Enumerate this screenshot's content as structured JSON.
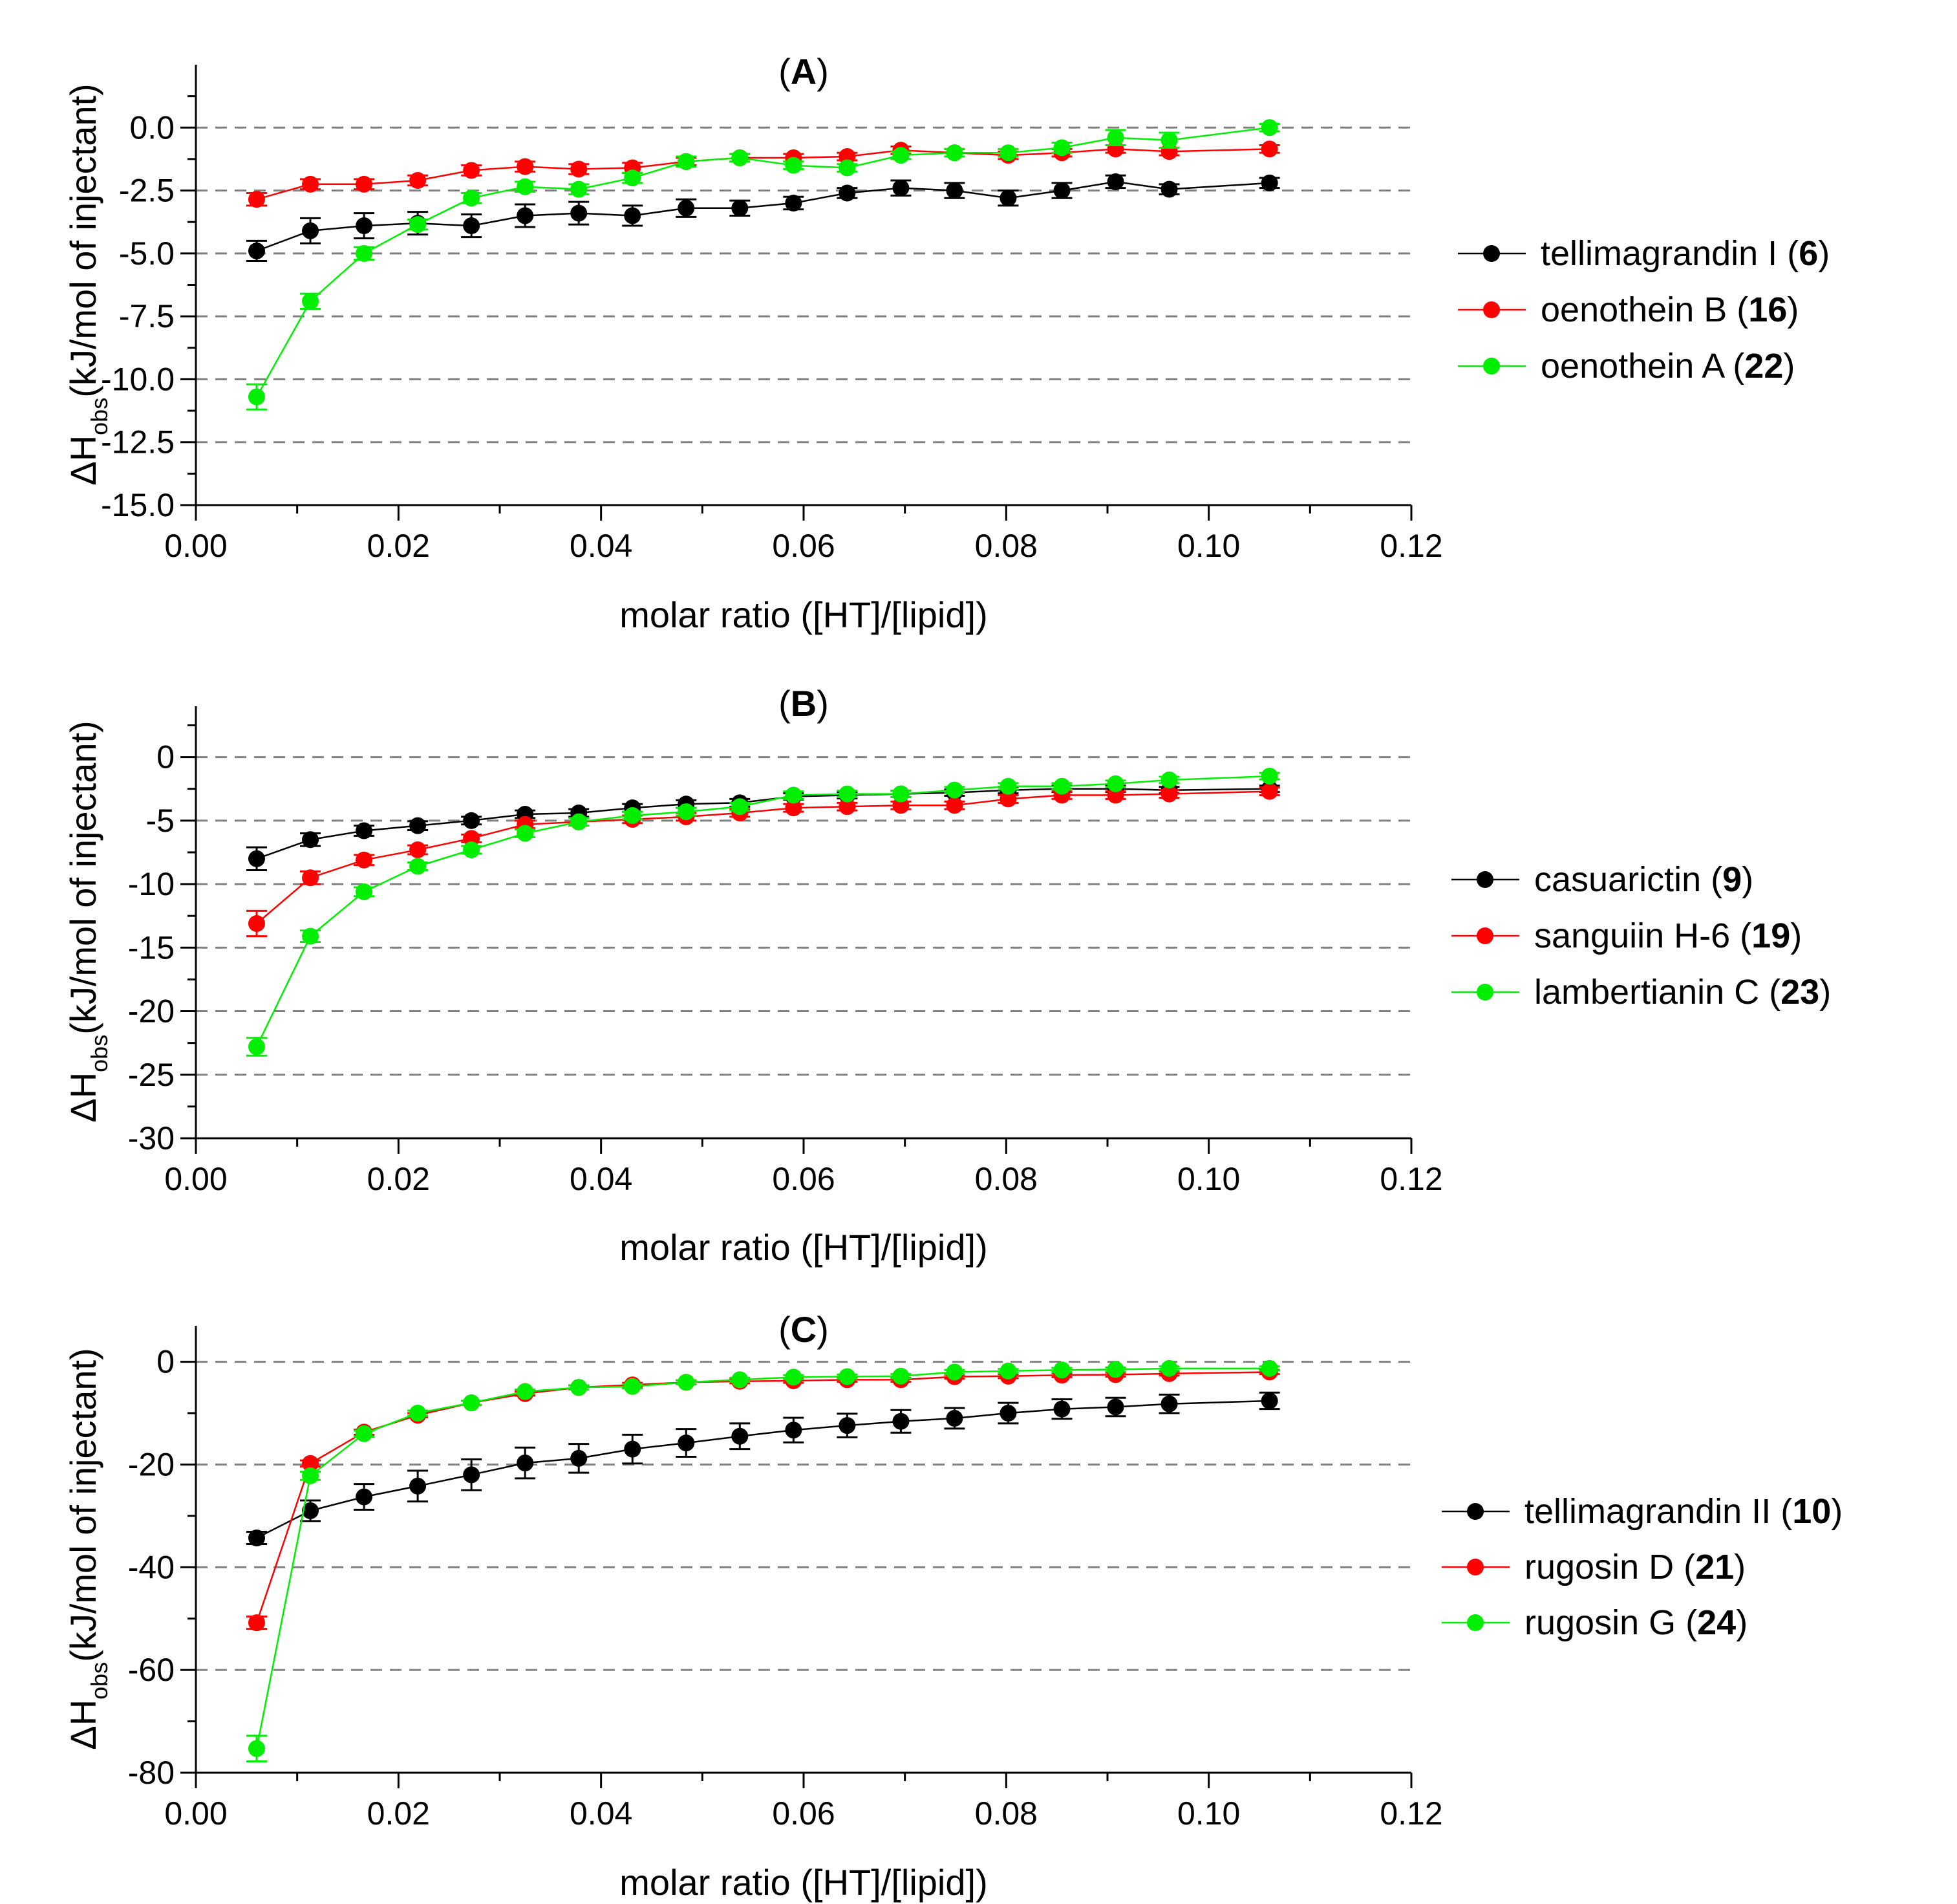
{
  "chart_data": [
    {
      "type": "line",
      "panel": "A",
      "title": "A",
      "xlabel": "molar ratio ([HT]/[lipid])",
      "ylabel_main": "ΔH",
      "ylabel_sub": "obs",
      "ylabel_rest": "(kJ/mol of injectant)",
      "xlim": [
        0.0,
        0.12
      ],
      "ylim": [
        -15.0,
        2.5
      ],
      "xticks": [
        0.0,
        0.02,
        0.04,
        0.06,
        0.08,
        0.1,
        0.12
      ],
      "xtick_labels": [
        "0.00",
        "0.02",
        "0.04",
        "0.06",
        "0.08",
        "0.10",
        "0.12"
      ],
      "yticks": [
        0.0,
        -2.5,
        -5.0,
        -7.5,
        -10.0,
        -12.5,
        -15.0
      ],
      "ytick_labels": [
        "0.0",
        "-2.5",
        "-5.0",
        "-7.5",
        "-10.0",
        "-12.5",
        "-15.0"
      ],
      "gridlines": [
        0.0,
        -2.5,
        -5.0,
        -7.5,
        -10.0,
        -12.5
      ],
      "legend_position": "right",
      "x": [
        0.006,
        0.0113,
        0.0166,
        0.0219,
        0.0272,
        0.0325,
        0.0378,
        0.0431,
        0.0484,
        0.0537,
        0.059,
        0.0643,
        0.0696,
        0.0749,
        0.0802,
        0.0855,
        0.0908,
        0.0961,
        0.106
      ],
      "series": [
        {
          "name": "tellimagrandin I (",
          "num": "6",
          "tail": ")",
          "color": "#000000",
          "values": [
            -4.9,
            -4.1,
            -3.9,
            -3.8,
            -3.9,
            -3.5,
            -3.4,
            -3.5,
            -3.2,
            -3.2,
            -3.0,
            -2.6,
            -2.4,
            -2.5,
            -2.8,
            -2.5,
            -2.15,
            -2.45,
            -2.2
          ],
          "errors": [
            0.4,
            0.5,
            0.5,
            0.45,
            0.45,
            0.45,
            0.45,
            0.4,
            0.35,
            0.3,
            0.25,
            0.2,
            0.3,
            0.3,
            0.3,
            0.3,
            0.25,
            0.2,
            0.2
          ]
        },
        {
          "name": "oenothein B (",
          "num": "16",
          "tail": ")",
          "color": "#ff0000",
          "values": [
            -2.85,
            -2.25,
            -2.25,
            -2.1,
            -1.7,
            -1.55,
            -1.65,
            -1.6,
            -1.35,
            -1.2,
            -1.2,
            -1.15,
            -0.9,
            -1.0,
            -1.1,
            -1.0,
            -0.85,
            -0.95,
            -0.85
          ],
          "errors": [
            0.25,
            0.2,
            0.2,
            0.2,
            0.2,
            0.2,
            0.2,
            0.2,
            0.15,
            0.15,
            0.15,
            0.15,
            0.15,
            0.15,
            0.15,
            0.15,
            0.15,
            0.15,
            0.15
          ]
        },
        {
          "name": "oenothein A (",
          "num": "22",
          "tail": ")",
          "color": "#00ee00",
          "values": [
            -10.7,
            -6.9,
            -5.0,
            -3.85,
            -2.8,
            -2.35,
            -2.45,
            -2.0,
            -1.35,
            -1.2,
            -1.5,
            -1.6,
            -1.1,
            -1.0,
            -1.0,
            -0.8,
            -0.4,
            -0.5,
            0.0
          ],
          "errors": [
            0.5,
            0.3,
            0.25,
            0.2,
            0.2,
            0.2,
            0.2,
            0.2,
            0.2,
            0.15,
            0.15,
            0.15,
            0.15,
            0.15,
            0.15,
            0.2,
            0.3,
            0.3,
            0.15
          ]
        }
      ]
    },
    {
      "type": "line",
      "panel": "B",
      "title": "B",
      "xlabel": "molar ratio ([HT]/[lipid])",
      "ylabel_main": "ΔH",
      "ylabel_sub": "obs",
      "ylabel_rest": "(kJ/mol of injectant)",
      "xlim": [
        0.0,
        0.12
      ],
      "ylim": [
        -30,
        4
      ],
      "xticks": [
        0.0,
        0.02,
        0.04,
        0.06,
        0.08,
        0.1,
        0.12
      ],
      "xtick_labels": [
        "0.00",
        "0.02",
        "0.04",
        "0.06",
        "0.08",
        "0.10",
        "0.12"
      ],
      "yticks": [
        0,
        -5,
        -10,
        -15,
        -20,
        -25,
        -30
      ],
      "ytick_labels": [
        "0",
        "-5",
        "-10",
        "-15",
        "-20",
        "-25",
        "-30"
      ],
      "gridlines": [
        0,
        -5,
        -10,
        -15,
        -20,
        -25
      ],
      "legend_position": "right",
      "x": [
        0.006,
        0.0113,
        0.0166,
        0.0219,
        0.0272,
        0.0325,
        0.0378,
        0.0431,
        0.0484,
        0.0537,
        0.059,
        0.0643,
        0.0696,
        0.0749,
        0.0802,
        0.0855,
        0.0908,
        0.0961,
        0.106
      ],
      "series": [
        {
          "name": "casuarictin (",
          "num": "9",
          "tail": ")",
          "color": "#000000",
          "values": [
            -8.0,
            -6.5,
            -5.8,
            -5.4,
            -5.0,
            -4.5,
            -4.4,
            -4.0,
            -3.7,
            -3.6,
            -3.1,
            -3.0,
            -2.9,
            -2.8,
            -2.6,
            -2.5,
            -2.5,
            -2.6,
            -2.5
          ],
          "errors": [
            0.9,
            0.5,
            0.4,
            0.35,
            0.3,
            0.3,
            0.3,
            0.3,
            0.3,
            0.3,
            0.25,
            0.25,
            0.25,
            0.25,
            0.25,
            0.25,
            0.25,
            0.25,
            0.25
          ]
        },
        {
          "name": "sanguiin H-6 (",
          "num": "19",
          "tail": ")",
          "color": "#ff0000",
          "values": [
            -13.1,
            -9.5,
            -8.1,
            -7.3,
            -6.4,
            -5.3,
            -5.1,
            -4.9,
            -4.7,
            -4.4,
            -4.0,
            -3.9,
            -3.8,
            -3.8,
            -3.3,
            -3.0,
            -3.0,
            -2.9,
            -2.7
          ],
          "errors": [
            1.0,
            0.5,
            0.4,
            0.35,
            0.3,
            0.3,
            0.3,
            0.3,
            0.3,
            0.3,
            0.3,
            0.3,
            0.3,
            0.3,
            0.3,
            0.3,
            0.3,
            0.3,
            0.3
          ]
        },
        {
          "name": "lambertianin C (",
          "num": "23",
          "tail": ")",
          "color": "#00ee00",
          "values": [
            -22.8,
            -14.1,
            -10.6,
            -8.6,
            -7.3,
            -6.0,
            -5.1,
            -4.6,
            -4.3,
            -3.9,
            -3.0,
            -2.9,
            -2.9,
            -2.6,
            -2.3,
            -2.3,
            -2.1,
            -1.8,
            -1.5
          ],
          "errors": [
            0.7,
            0.45,
            0.35,
            0.3,
            0.3,
            0.3,
            0.3,
            0.3,
            0.3,
            0.3,
            0.3,
            0.25,
            0.25,
            0.25,
            0.25,
            0.25,
            0.25,
            0.25,
            0.25
          ]
        }
      ]
    },
    {
      "type": "line",
      "panel": "C",
      "title": "C",
      "xlabel": "molar ratio ([HT]/[lipid])",
      "ylabel_main": "ΔH",
      "ylabel_sub": "obs",
      "ylabel_rest": "(kJ/mol of injectant)",
      "xlim": [
        0.0,
        0.12
      ],
      "ylim": [
        -80,
        7
      ],
      "xticks": [
        0.0,
        0.02,
        0.04,
        0.06,
        0.08,
        0.1,
        0.12
      ],
      "xtick_labels": [
        "0.00",
        "0.02",
        "0.04",
        "0.06",
        "0.08",
        "0.10",
        "0.12"
      ],
      "yticks": [
        0,
        -20,
        -40,
        -60,
        -80
      ],
      "ytick_labels": [
        "0",
        "-20",
        "-40",
        "-60",
        "-80"
      ],
      "gridlines": [
        0,
        -20,
        -40,
        -60
      ],
      "legend_position": "right",
      "x": [
        0.006,
        0.0113,
        0.0166,
        0.0219,
        0.0272,
        0.0325,
        0.0378,
        0.0431,
        0.0484,
        0.0537,
        0.059,
        0.0643,
        0.0696,
        0.0749,
        0.0802,
        0.0855,
        0.0908,
        0.0961,
        0.106
      ],
      "series": [
        {
          "name": "tellimagrandin II (",
          "num": "10",
          "tail": ")",
          "color": "#000000",
          "values": [
            -34.3,
            -29.0,
            -26.3,
            -24.2,
            -22.0,
            -19.7,
            -18.8,
            -17.0,
            -15.8,
            -14.5,
            -13.3,
            -12.4,
            -11.6,
            -11.0,
            -10.0,
            -9.2,
            -8.8,
            -8.2,
            -7.6
          ],
          "errors": [
            1.2,
            2.0,
            2.5,
            3.0,
            3.0,
            3.0,
            2.8,
            2.8,
            2.7,
            2.5,
            2.4,
            2.3,
            2.2,
            2.0,
            2.0,
            1.9,
            1.8,
            1.8,
            1.6
          ]
        },
        {
          "name": "rugosin D (",
          "num": "21",
          "tail": ")",
          "color": "#ff0000",
          "values": [
            -50.8,
            -19.8,
            -13.7,
            -10.4,
            -8.0,
            -6.2,
            -5.0,
            -4.5,
            -4.0,
            -3.8,
            -3.7,
            -3.5,
            -3.5,
            -2.9,
            -2.8,
            -2.6,
            -2.5,
            -2.3,
            -2.0
          ],
          "errors": [
            1.2,
            0.6,
            0.5,
            0.4,
            0.4,
            0.4,
            0.4,
            0.4,
            0.4,
            0.4,
            0.4,
            0.4,
            0.4,
            0.4,
            0.4,
            0.4,
            0.4,
            0.4,
            0.4
          ]
        },
        {
          "name": "rugosin G (",
          "num": "24",
          "tail": ")",
          "color": "#00ee00",
          "values": [
            -75.3,
            -22.2,
            -14.0,
            -10.0,
            -8.0,
            -5.8,
            -5.0,
            -4.8,
            -4.0,
            -3.5,
            -3.0,
            -2.9,
            -2.8,
            -2.0,
            -1.8,
            -1.6,
            -1.5,
            -1.3,
            -1.3
          ],
          "errors": [
            2.5,
            0.8,
            0.6,
            0.5,
            0.4,
            0.4,
            0.4,
            0.4,
            0.4,
            0.4,
            0.4,
            0.4,
            0.4,
            0.4,
            0.4,
            0.4,
            0.4,
            0.4,
            0.4
          ]
        }
      ]
    }
  ]
}
